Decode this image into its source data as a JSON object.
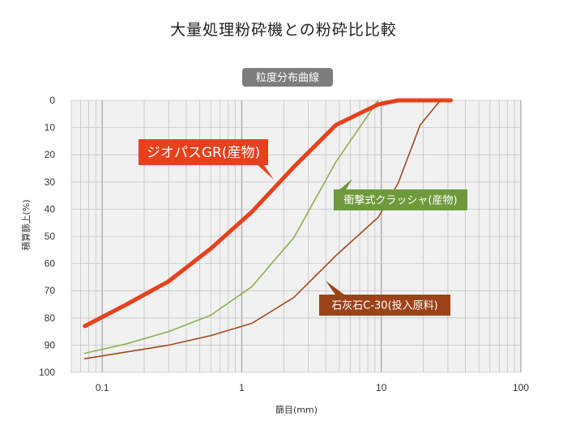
{
  "title": "大量処理粉砕機との粉砕比比較",
  "chart_data": {
    "type": "line",
    "subtitle": "粒度分布曲線",
    "xlabel": "篩目(mm)",
    "ylabel": "積算篩上(%)",
    "x_scale": "log",
    "xlim": [
      0.06,
      100
    ],
    "ylim": [
      0,
      100
    ],
    "y_inverted": true,
    "grid": true,
    "x_ticks": [
      "0.1",
      "1",
      "10",
      "100"
    ],
    "y_ticks": [
      "0",
      "10",
      "20",
      "30",
      "40",
      "50",
      "60",
      "70",
      "80",
      "90",
      "100"
    ],
    "series": [
      {
        "name": "ジオパスGR(産物)",
        "color": "#e8401c",
        "label_bg": "#e8401c",
        "width": 5,
        "x": [
          0.075,
          0.15,
          0.3,
          0.6,
          1.18,
          2.36,
          4.75,
          9.5,
          13.2,
          19,
          26.5,
          31.5
        ],
        "y": [
          83,
          75,
          66.5,
          54.5,
          41,
          24.5,
          9,
          1.5,
          0,
          0,
          0,
          0
        ]
      },
      {
        "name": "衝撃式クラッシャ(産物)",
        "color": "#8cb053",
        "label_bg": "#6e9a3c",
        "width": 1.6,
        "x": [
          0.075,
          0.15,
          0.3,
          0.6,
          1.18,
          2.36,
          4.75,
          9.5
        ],
        "y": [
          93,
          89.5,
          85,
          79,
          68.5,
          50.5,
          22.5,
          0
        ]
      },
      {
        "name": "石灰石C-30(投入原料)",
        "color": "#a24a1e",
        "label_bg": "#9c4219",
        "width": 1.6,
        "x": [
          0.075,
          0.15,
          0.3,
          0.6,
          1.18,
          2.36,
          4.75,
          9.5,
          13.2,
          19,
          26.5,
          31.5
        ],
        "y": [
          95,
          92.5,
          90,
          86.5,
          82,
          72.5,
          57,
          43,
          30.5,
          9,
          0,
          0
        ]
      }
    ]
  }
}
